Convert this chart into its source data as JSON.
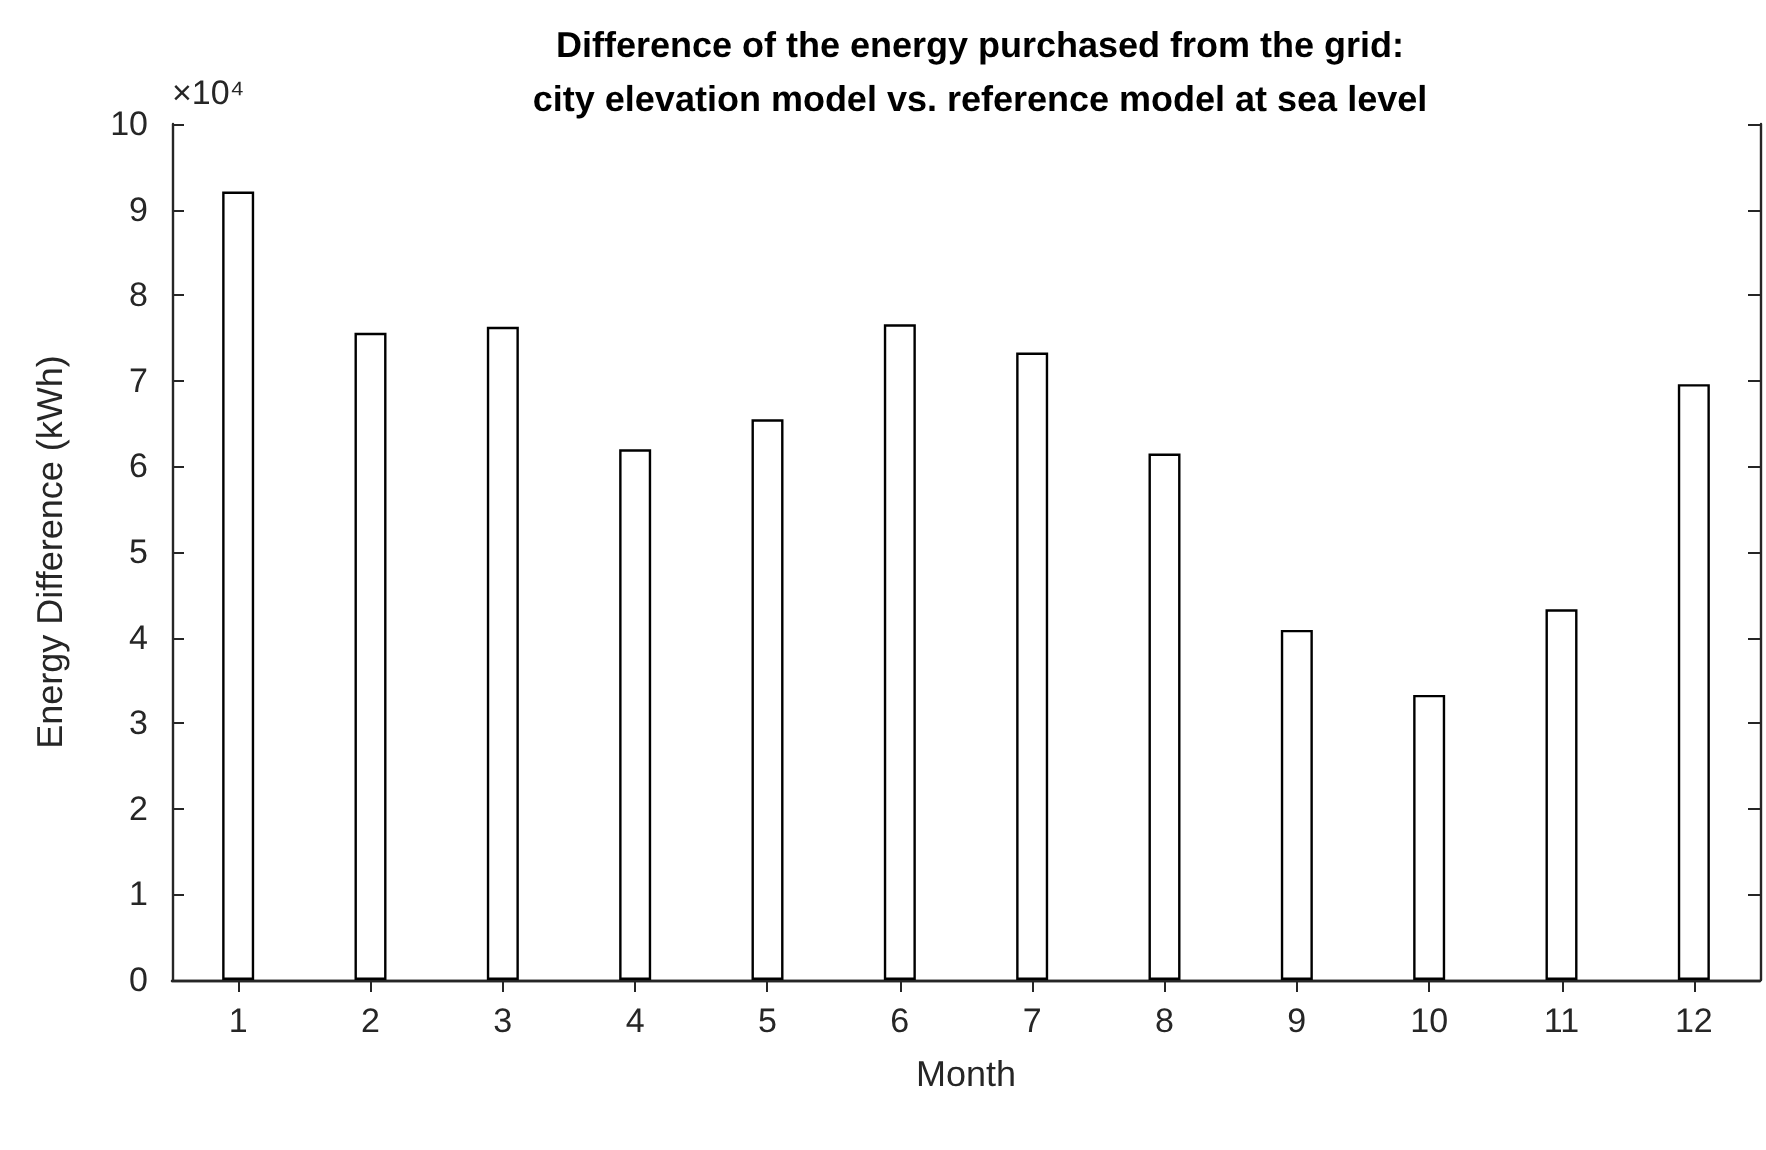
{
  "chart_data": {
    "type": "bar",
    "title": "Difference of the energy purchased from the grid:\ncity elevation model vs. reference model at sea level",
    "xlabel": "Month",
    "ylabel": "Energy Difference (kWh)",
    "annotations": [
      "×10⁴"
    ],
    "categories": [
      "1",
      "2",
      "3",
      "4",
      "5",
      "6",
      "7",
      "8",
      "9",
      "10",
      "11",
      "12"
    ],
    "values": [
      9.21,
      7.56,
      7.63,
      6.2,
      6.55,
      7.66,
      7.33,
      6.15,
      4.09,
      3.33,
      4.33,
      6.96
    ],
    "color": "#ffffff",
    "ylim": [
      0,
      10
    ],
    "yticks": [
      0,
      1,
      2,
      3,
      4,
      5,
      6,
      7,
      8,
      9,
      10
    ],
    "grid": false
  }
}
